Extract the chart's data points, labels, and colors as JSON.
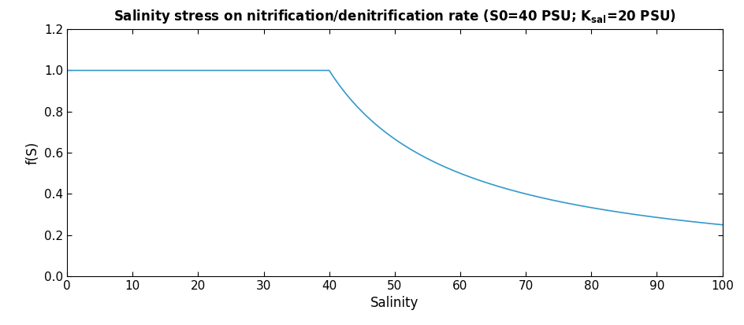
{
  "S0": 40,
  "K_sal": 20,
  "x_min": 0,
  "x_max": 100,
  "y_min": 0,
  "y_max": 1.2,
  "xlabel": "Salinity",
  "ylabel": "f(S)",
  "line_color": "#3399cc",
  "line_width": 1.2,
  "xticks": [
    0,
    10,
    20,
    30,
    40,
    50,
    60,
    70,
    80,
    90,
    100
  ],
  "yticks": [
    0,
    0.2,
    0.4,
    0.6,
    0.8,
    1.0,
    1.2
  ],
  "background_color": "#ffffff",
  "tick_label_fontsize": 11,
  "axis_label_fontsize": 12,
  "title_fontsize": 12,
  "fig_width": 9.45,
  "fig_height": 4.13,
  "dpi": 100
}
